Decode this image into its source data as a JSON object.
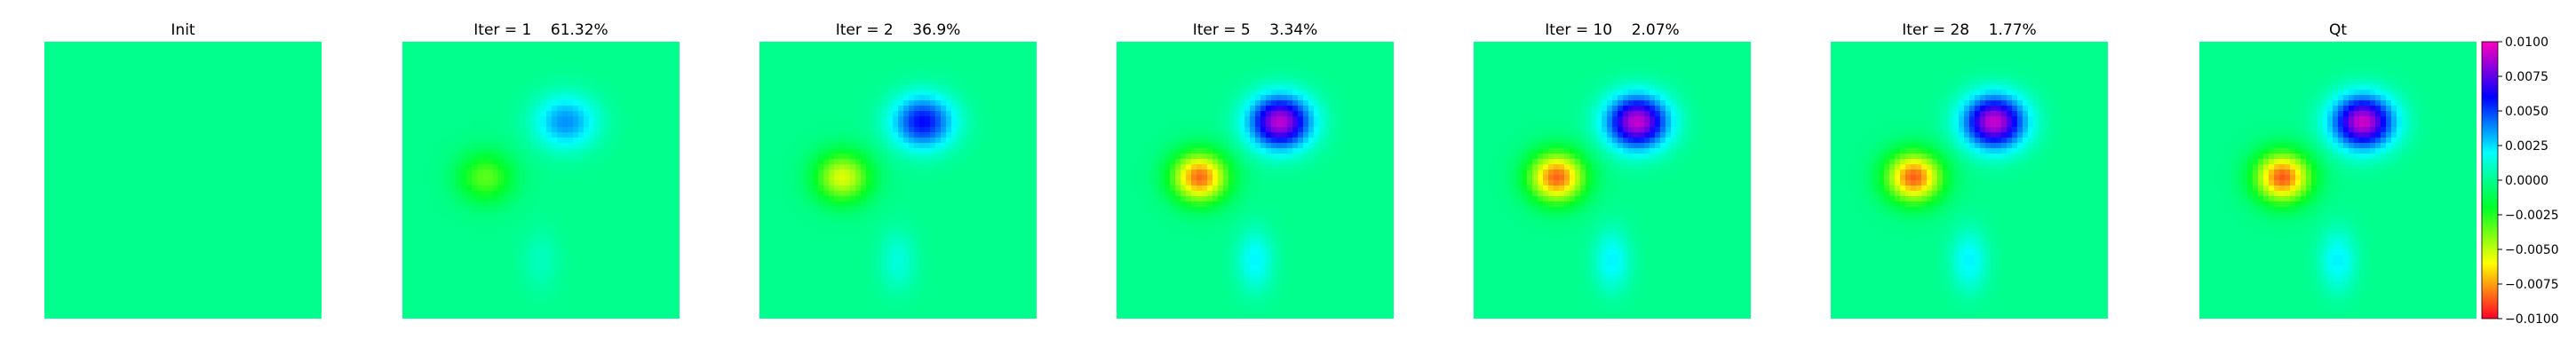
{
  "chart_data": {
    "type": "heatmap",
    "colormap": "gist_rainbow_r",
    "colorbar": {
      "vmin": -0.01,
      "vmax": 0.01,
      "ticks": [
        "0.0100",
        "0.0075",
        "0.0050",
        "0.0025",
        "0.0000",
        "−0.0025",
        "−0.0050",
        "−0.0075",
        "−0.0100"
      ],
      "tick_values": [
        0.01,
        0.0075,
        0.005,
        0.0025,
        0.0,
        -0.0025,
        -0.005,
        -0.0075,
        -0.01
      ]
    },
    "field": {
      "description_grid_units": "panel unit square, x to the right, y downward",
      "sources": [
        {
          "cx": 0.59,
          "cy": 0.29,
          "sx": 0.11,
          "sy": 0.095,
          "amplitude": 0.0093
        },
        {
          "cx": 0.3,
          "cy": 0.49,
          "sx": 0.1,
          "sy": 0.09,
          "amplitude": -0.0086
        },
        {
          "cx": 0.5,
          "cy": 0.79,
          "sx": 0.065,
          "sy": 0.11,
          "amplitude": 0.0022
        }
      ]
    },
    "panels": [
      {
        "title": "Init",
        "scale": 0.0
      },
      {
        "title": "Iter = 1    61.32%",
        "scale": 0.4
      },
      {
        "title": "Iter = 2    36.9%",
        "scale": 0.64
      },
      {
        "title": "Iter = 5    3.34%",
        "scale": 0.97
      },
      {
        "title": "Iter = 10    2.07%",
        "scale": 0.985
      },
      {
        "title": "Iter = 28    1.77%",
        "scale": 0.99
      },
      {
        "title": "Qt",
        "scale": 1.0
      }
    ]
  }
}
